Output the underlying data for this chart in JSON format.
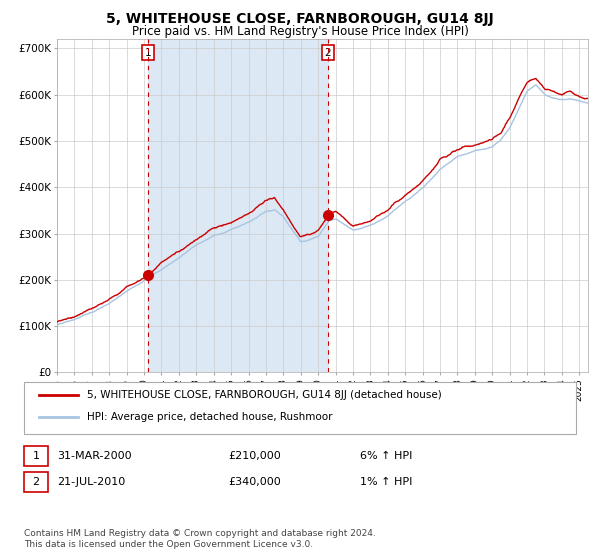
{
  "title": "5, WHITEHOUSE CLOSE, FARNBOROUGH, GU14 8JJ",
  "subtitle": "Price paid vs. HM Land Registry's House Price Index (HPI)",
  "title_fontsize": 10,
  "subtitle_fontsize": 8.5,
  "ylim": [
    0,
    720000
  ],
  "yticks": [
    0,
    100000,
    200000,
    300000,
    400000,
    500000,
    600000,
    700000
  ],
  "ytick_labels": [
    "£0",
    "£100K",
    "£200K",
    "£300K",
    "£400K",
    "£500K",
    "£600K",
    "£700K"
  ],
  "background_color": "#ffffff",
  "plot_bg_color": "#ffffff",
  "shaded_region_color": "#dce9f5",
  "grid_color": "#cccccc",
  "hpi_line_color": "#a8c4e0",
  "price_line_color": "#cc0000",
  "sale1_date": 2000.25,
  "sale1_price": 210000,
  "sale2_date": 2010.55,
  "sale2_price": 340000,
  "sale1_label": "1",
  "sale2_label": "2",
  "legend_entries": [
    "5, WHITEHOUSE CLOSE, FARNBOROUGH, GU14 8JJ (detached house)",
    "HPI: Average price, detached house, Rushmoor"
  ],
  "table_entries": [
    {
      "num": "1",
      "date": "31-MAR-2000",
      "price": "£210,000",
      "hpi": "6% ↑ HPI"
    },
    {
      "num": "2",
      "date": "21-JUL-2010",
      "price": "£340,000",
      "hpi": "1% ↑ HPI"
    }
  ],
  "footer": "Contains HM Land Registry data © Crown copyright and database right 2024.\nThis data is licensed under the Open Government Licence v3.0.",
  "xmin": 1995.0,
  "xmax": 2025.5,
  "hpi_ctrl_x": [
    1995,
    1996,
    1997,
    1998,
    1999,
    2000,
    2001,
    2002,
    2003,
    2004,
    2005,
    2006,
    2007,
    2007.5,
    2008,
    2008.5,
    2009,
    2009.5,
    2010,
    2010.6,
    2011,
    2012,
    2013,
    2014,
    2015,
    2016,
    2017,
    2018,
    2019,
    2020,
    2020.5,
    2021,
    2021.5,
    2022,
    2022.5,
    2023,
    2023.5,
    2024,
    2024.5,
    2025,
    2025.5
  ],
  "hpi_ctrl_y": [
    103000,
    115000,
    130000,
    148000,
    175000,
    200000,
    222000,
    248000,
    275000,
    295000,
    308000,
    325000,
    348000,
    352000,
    338000,
    308000,
    283000,
    288000,
    293000,
    328000,
    332000,
    308000,
    318000,
    338000,
    368000,
    398000,
    438000,
    468000,
    478000,
    488000,
    503000,
    528000,
    568000,
    608000,
    622000,
    602000,
    592000,
    588000,
    592000,
    587000,
    582000
  ],
  "price_ctrl_x": [
    1995,
    1996,
    1997,
    1998,
    1999,
    2000.25,
    2001,
    2002,
    2003,
    2004,
    2005,
    2006,
    2007,
    2007.5,
    2008,
    2008.5,
    2009,
    2009.5,
    2010,
    2010.55,
    2011,
    2012,
    2013,
    2014,
    2015,
    2016,
    2017,
    2018,
    2019,
    2020,
    2020.5,
    2021,
    2021.5,
    2022,
    2022.5,
    2023,
    2023.5,
    2024,
    2024.5,
    2025,
    2025.5
  ],
  "price_ctrl_y": [
    108000,
    120000,
    138000,
    158000,
    185000,
    210000,
    238000,
    262000,
    288000,
    312000,
    322000,
    342000,
    372000,
    378000,
    352000,
    318000,
    292000,
    298000,
    308000,
    340000,
    348000,
    318000,
    328000,
    352000,
    382000,
    412000,
    458000,
    482000,
    492000,
    502000,
    518000,
    548000,
    588000,
    628000,
    638000,
    612000,
    608000,
    602000,
    608000,
    597000,
    592000
  ]
}
